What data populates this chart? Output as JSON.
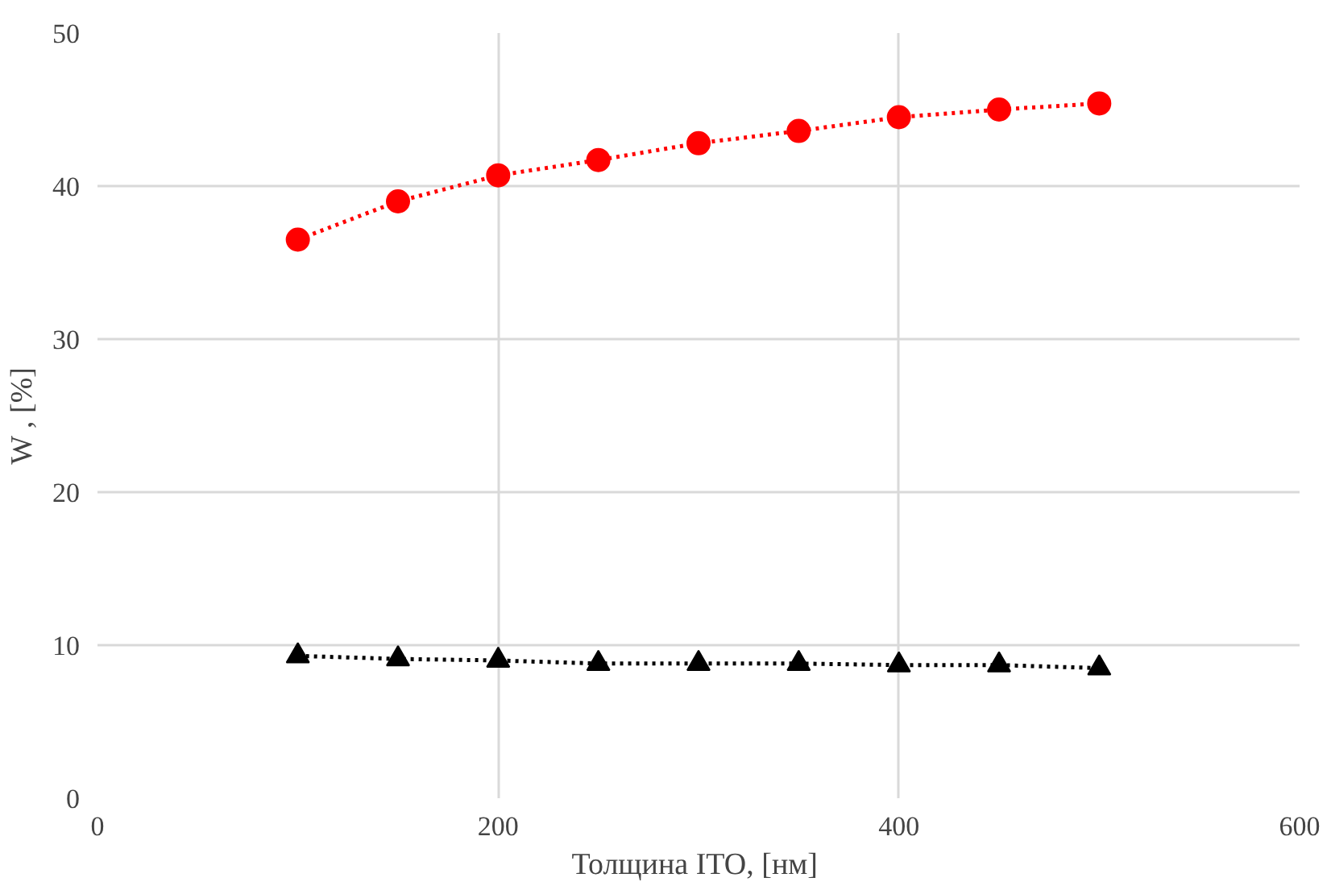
{
  "chart_data": {
    "type": "line",
    "xlabel": "Толщина  ITO, [нм]",
    "ylabel": "W , [%]",
    "x": [
      100,
      150,
      200,
      250,
      300,
      350,
      400,
      450,
      500
    ],
    "series": [
      {
        "color": "#ff0000",
        "marker": "circle",
        "values": [
          36.5,
          39.0,
          40.7,
          41.7,
          42.8,
          43.6,
          44.5,
          45.0,
          45.4
        ]
      },
      {
        "color": "#000000",
        "marker": "triangle",
        "values": [
          9.3,
          9.1,
          9.0,
          8.8,
          8.8,
          8.8,
          8.7,
          8.7,
          8.5
        ]
      }
    ],
    "xlim": [
      0,
      600
    ],
    "xticks": [
      0,
      200,
      400,
      600
    ],
    "ylim": [
      0,
      50
    ],
    "yticks": [
      0,
      10,
      20,
      30,
      40,
      50
    ],
    "grid": true,
    "line_style": "dotted"
  }
}
